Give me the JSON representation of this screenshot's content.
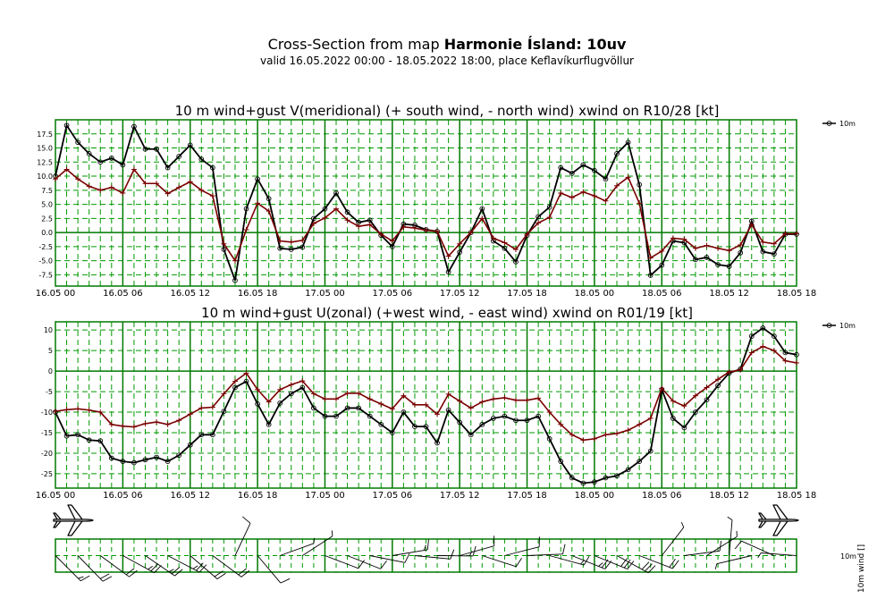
{
  "header": {
    "title_prefix": "Cross-Section from map",
    "title_map": "Harmonie Ísland: 10uv",
    "subtitle": "valid 16.05.2022 00:00 - 18.05.2022 18:00, place Keflavíkurflugvöllur"
  },
  "colors": {
    "grid_major": "#007a00",
    "grid_minor": "#009900",
    "wind": "#000000",
    "gust": "#7a0000"
  },
  "x_tick_labels": [
    "16.05 00",
    "16.05 06",
    "16.05 12",
    "16.05 18",
    "17.05 00",
    "17.05 06",
    "17.05 12",
    "17.05 18",
    "18.05 00",
    "18.05 06",
    "18.05 12",
    "18.05 18"
  ],
  "chart_data": [
    {
      "type": "line",
      "title": "10 m wind+gust V(meridional) (+ south wind, - north wind) xwind on R10/28 [kt]",
      "x_unit": "hours from 16.05 00",
      "x": [
        0,
        1,
        2,
        3,
        4,
        5,
        6,
        7,
        8,
        9,
        10,
        11,
        12,
        13,
        14,
        15,
        16,
        17,
        18,
        19,
        20,
        21,
        22,
        23,
        24,
        25,
        26,
        27,
        28,
        29,
        30,
        31,
        32,
        33,
        34,
        35,
        36,
        37,
        38,
        39,
        40,
        41,
        42,
        43,
        44,
        45,
        46,
        47,
        48,
        49,
        50,
        51,
        52,
        53,
        54,
        55,
        56,
        57,
        58,
        59,
        60,
        61,
        62,
        63,
        64,
        65,
        66
      ],
      "xlim": [
        0,
        66
      ],
      "ylim": [
        -9.5,
        20
      ],
      "y_ticks": [
        -7.5,
        -5,
        -2.5,
        0,
        2.5,
        5,
        7.5,
        10,
        12.5,
        15,
        17.5
      ],
      "y_tick_labels": [
        "-7.5",
        "-5.0",
        "-2.5",
        "0.0",
        "2.5",
        "5.0",
        "7.5",
        "10.0",
        "12.5",
        "15.0",
        "17.5"
      ],
      "legend": {
        "label": "10m",
        "placement": "right"
      },
      "series": [
        {
          "name": "10m",
          "role": "wind",
          "values": [
            10,
            19,
            16,
            14,
            12.5,
            13.2,
            12,
            18.8,
            14.8,
            14.8,
            11.5,
            13.5,
            15.5,
            13,
            11.5,
            -3,
            -8.5,
            4.2,
            9.5,
            6,
            -2.8,
            -3,
            -2.6,
            2.5,
            4.2,
            7,
            3.6,
            1.8,
            2.2,
            -0.5,
            -2.5,
            1.5,
            1.3,
            0.5,
            0.2,
            -7,
            -3.5,
            0,
            4.2,
            -1.5,
            -2.8,
            -5.2,
            -0.5,
            2.8,
            4.5,
            11.5,
            10.5,
            12,
            11,
            9.5,
            14,
            16,
            8.5,
            -7.6,
            -5.8,
            -1.5,
            -1.8,
            -4.8,
            -4.4,
            -5.7,
            -6,
            -3.6,
            2,
            -3.4,
            -3.8,
            -0.3,
            -0.3
          ]
        },
        {
          "name": "",
          "role": "gust",
          "values": [
            9.5,
            11.2,
            9.5,
            8.2,
            7.5,
            8,
            7,
            11.2,
            8.7,
            8.7,
            6.9,
            8,
            9,
            7.5,
            6.5,
            -2,
            -5,
            0.5,
            5.2,
            3.8,
            -1.5,
            -1.7,
            -1.4,
            1.6,
            2.6,
            4.2,
            2.2,
            1.1,
            1.4,
            -0.3,
            -1.5,
            1,
            0.8,
            0.4,
            0.2,
            -4.2,
            -2,
            0,
            2.5,
            -1,
            -1.8,
            -3,
            -0.3,
            1.7,
            2.7,
            7,
            6.2,
            7.2,
            6.5,
            5.6,
            8.3,
            9.8,
            5.2,
            -4.5,
            -3.3,
            -1,
            -1.2,
            -2.8,
            -2.3,
            -2.8,
            -3.2,
            -2.2,
            1.4,
            -1.7,
            -2,
            -0.2,
            -0.2
          ]
        }
      ]
    },
    {
      "type": "line",
      "title": "10 m wind+gust U(zonal) (+west wind, - east wind) xwind on R01/19 [kt]",
      "x_unit": "hours from 16.05 00",
      "x": [
        0,
        1,
        2,
        3,
        4,
        5,
        6,
        7,
        8,
        9,
        10,
        11,
        12,
        13,
        14,
        15,
        16,
        17,
        18,
        19,
        20,
        21,
        22,
        23,
        24,
        25,
        26,
        27,
        28,
        29,
        30,
        31,
        32,
        33,
        34,
        35,
        36,
        37,
        38,
        39,
        40,
        41,
        42,
        43,
        44,
        45,
        46,
        47,
        48,
        49,
        50,
        51,
        52,
        53,
        54,
        55,
        56,
        57,
        58,
        59,
        60,
        61,
        62,
        63,
        64,
        65,
        66
      ],
      "xlim": [
        0,
        66
      ],
      "ylim": [
        -28.5,
        12
      ],
      "y_ticks": [
        -25,
        -20,
        -15,
        -10,
        -5,
        0,
        5,
        10
      ],
      "y_tick_labels": [
        "-25",
        "-20",
        "-15",
        "-10",
        "-5",
        "0",
        "5",
        "10"
      ],
      "legend": {
        "label": "10m",
        "placement": "right"
      },
      "series": [
        {
          "name": "10m",
          "role": "wind",
          "values": [
            -10,
            -15.8,
            -15.5,
            -16.8,
            -17,
            -21.2,
            -22,
            -22.3,
            -21.6,
            -21,
            -22,
            -20.5,
            -18,
            -15.5,
            -15.5,
            -9.8,
            -4,
            -2.5,
            -8,
            -13,
            -7.8,
            -5.5,
            -4,
            -9,
            -11,
            -11,
            -9,
            -9,
            -11,
            -13,
            -15,
            -10,
            -13.5,
            -13.5,
            -17.5,
            -9.5,
            -12.5,
            -15.5,
            -13,
            -11.5,
            -11,
            -12,
            -12,
            -11,
            -16.5,
            -22,
            -26,
            -27.3,
            -27,
            -26,
            -25.5,
            -24,
            -22,
            -19.5,
            -4.5,
            -11.5,
            -13.8,
            -10,
            -7,
            -3.5,
            -0.5,
            0.5,
            8.5,
            10.5,
            8.5,
            4.5,
            4
          ]
        },
        {
          "name": "",
          "role": "gust",
          "values": [
            -9.8,
            -9.4,
            -9.2,
            -9.5,
            -10,
            -13,
            -13.4,
            -13.6,
            -12.8,
            -12.4,
            -13,
            -12,
            -10.5,
            -9,
            -8.8,
            -5.5,
            -2.5,
            -0.5,
            -4.5,
            -7.5,
            -4.5,
            -3.3,
            -2.4,
            -5.5,
            -6.8,
            -6.8,
            -5.4,
            -5.4,
            -6.8,
            -8,
            -9.2,
            -6,
            -8.2,
            -8.2,
            -10.5,
            -5.6,
            -7.3,
            -9,
            -7.5,
            -6.8,
            -6.5,
            -7.1,
            -7.1,
            -6.6,
            -10,
            -13,
            -15.5,
            -16.8,
            -16.5,
            -15.5,
            -15.2,
            -14.4,
            -13,
            -11.5,
            -4.2,
            -7.3,
            -8.5,
            -6,
            -4,
            -2,
            -0.2,
            0.3,
            4.5,
            6,
            5,
            2.5,
            2
          ]
        }
      ]
    }
  ],
  "barbs": {
    "label": "10m",
    "axis_label": "10m wind []"
  }
}
